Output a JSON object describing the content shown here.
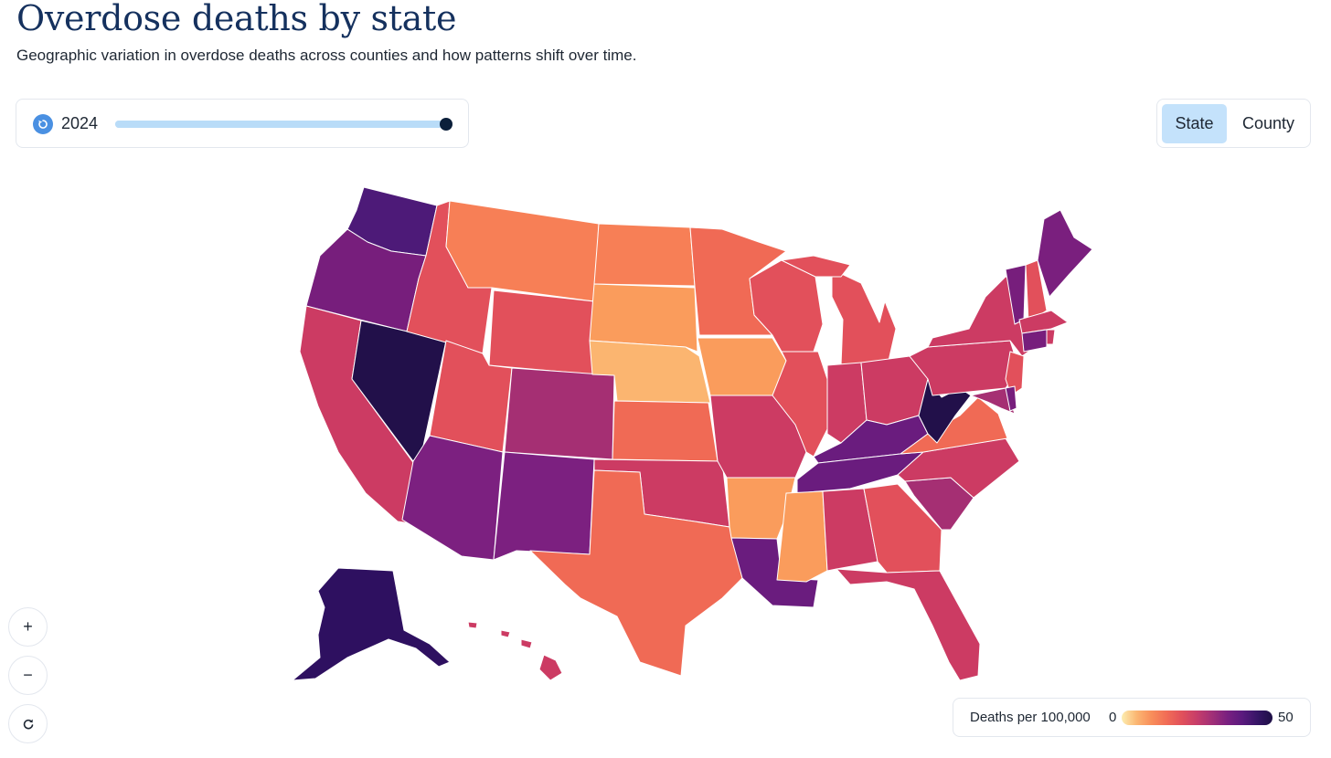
{
  "header": {
    "title": "Overdose deaths by state",
    "subtitle": "Geographic variation in overdose deaths across counties and how patterns shift over time."
  },
  "year_control": {
    "replay_icon": "replay-icon",
    "year": "2024",
    "slider_position": 1.0
  },
  "view_toggle": {
    "options": [
      "State",
      "County"
    ],
    "selected": "State"
  },
  "zoom_controls": {
    "zoom_in": "+",
    "zoom_out": "−",
    "reset_icon": "reset-icon"
  },
  "legend": {
    "title": "Deaths per 100,000",
    "min": "0",
    "max": "50",
    "colors": [
      "#fcedb0",
      "#fbb672",
      "#f88d5a",
      "#f16c56",
      "#e1505b",
      "#c63d6a",
      "#a12f77",
      "#7a2080",
      "#5a1a7e",
      "#361566",
      "#1d0f45"
    ]
  },
  "map_colors": {
    "nevada_wv": "#22104a",
    "alaska": "#2e1060",
    "washington": "#4d1a78",
    "oregon": "#771e7c",
    "arizona_nm": "#7c2080",
    "kentucky_tn": "#6a1c7e",
    "maine": "#7a1f7e",
    "colorado": "#a52f73",
    "pink_red": "#cc3b63",
    "red": "#e2505b",
    "coral": "#f06a55",
    "orange": "#f77f56",
    "light_orange": "#fa9c5c",
    "peach": "#fbb570",
    "pale": "#fcc987"
  }
}
